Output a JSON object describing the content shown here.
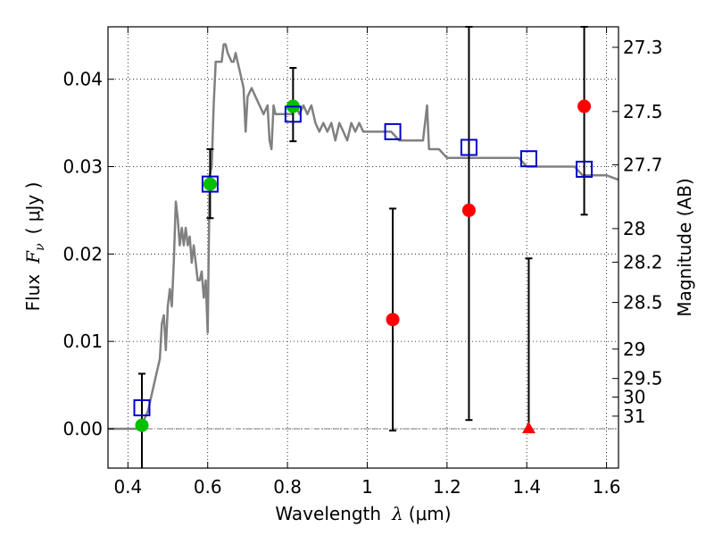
{
  "chart_data": {
    "type": "scatter",
    "xlabel_text": "Wavelength",
    "xlabel_symbol": "λ",
    "xlabel_unit": "(μm)",
    "ylabel_text": "Flux",
    "ylabel_symbol": "F",
    "ylabel_subscript": "ν",
    "ylabel_unit": "( μJy )",
    "ylabel_right": "Magnitude (AB)",
    "xlim": [
      0.35,
      1.63
    ],
    "ylim": [
      -0.0045,
      0.046
    ],
    "grid": true,
    "x_ticks": [
      {
        "value": 0.4,
        "label": "0.4"
      },
      {
        "value": 0.6,
        "label": "0.6"
      },
      {
        "value": 0.8,
        "label": "0.8"
      },
      {
        "value": 1.0,
        "label": "1"
      },
      {
        "value": 1.2,
        "label": "1.2"
      },
      {
        "value": 1.4,
        "label": "1.4"
      },
      {
        "value": 1.6,
        "label": "1.6"
      }
    ],
    "y_ticks": [
      {
        "value": 0.0,
        "label": "0.00"
      },
      {
        "value": 0.01,
        "label": "0.01"
      },
      {
        "value": 0.02,
        "label": "0.02"
      },
      {
        "value": 0.03,
        "label": "0.03"
      },
      {
        "value": 0.04,
        "label": "0.04"
      }
    ],
    "mag_ticks": [
      {
        "mag": 27.3,
        "label": "27.3"
      },
      {
        "mag": 27.5,
        "label": "27.5"
      },
      {
        "mag": 27.7,
        "label": "27.7"
      },
      {
        "mag": 28,
        "label": "28"
      },
      {
        "mag": 28.2,
        "label": "28.2"
      },
      {
        "mag": 28.5,
        "label": "28.5"
      },
      {
        "mag": 29,
        "label": "29"
      },
      {
        "mag": 29.5,
        "label": "29.5"
      },
      {
        "mag": 30,
        "label": "30"
      },
      {
        "mag": 31,
        "label": "31"
      }
    ],
    "zero_line": {
      "y": 0,
      "color": "#777777"
    },
    "model_spectrum": {
      "color": "#808080",
      "points": [
        [
          0.35,
          0.0
        ],
        [
          0.4,
          0.0
        ],
        [
          0.43,
          0.0
        ],
        [
          0.45,
          0.002
        ],
        [
          0.47,
          0.006
        ],
        [
          0.48,
          0.008
        ],
        [
          0.485,
          0.012
        ],
        [
          0.49,
          0.013
        ],
        [
          0.495,
          0.009
        ],
        [
          0.5,
          0.014
        ],
        [
          0.505,
          0.016
        ],
        [
          0.51,
          0.014
        ],
        [
          0.515,
          0.019
        ],
        [
          0.52,
          0.026
        ],
        [
          0.525,
          0.024
        ],
        [
          0.53,
          0.021
        ],
        [
          0.535,
          0.023
        ],
        [
          0.54,
          0.021
        ],
        [
          0.545,
          0.023
        ],
        [
          0.55,
          0.021
        ],
        [
          0.555,
          0.022
        ],
        [
          0.56,
          0.019
        ],
        [
          0.565,
          0.021
        ],
        [
          0.57,
          0.019
        ],
        [
          0.575,
          0.017
        ],
        [
          0.58,
          0.017
        ],
        [
          0.585,
          0.018
        ],
        [
          0.59,
          0.015
        ],
        [
          0.595,
          0.017
        ],
        [
          0.6,
          0.011
        ],
        [
          0.605,
          0.029
        ],
        [
          0.61,
          0.03
        ],
        [
          0.615,
          0.037
        ],
        [
          0.62,
          0.042
        ],
        [
          0.63,
          0.042
        ],
        [
          0.635,
          0.042
        ],
        [
          0.64,
          0.044
        ],
        [
          0.645,
          0.044
        ],
        [
          0.65,
          0.043
        ],
        [
          0.66,
          0.042
        ],
        [
          0.665,
          0.042
        ],
        [
          0.67,
          0.043
        ],
        [
          0.675,
          0.042
        ],
        [
          0.68,
          0.041
        ],
        [
          0.69,
          0.039
        ],
        [
          0.695,
          0.034
        ],
        [
          0.7,
          0.038
        ],
        [
          0.71,
          0.039
        ],
        [
          0.72,
          0.038
        ],
        [
          0.73,
          0.037
        ],
        [
          0.74,
          0.036
        ],
        [
          0.75,
          0.037
        ],
        [
          0.755,
          0.033
        ],
        [
          0.76,
          0.032
        ],
        [
          0.765,
          0.037
        ],
        [
          0.77,
          0.036
        ],
        [
          0.78,
          0.036
        ],
        [
          0.79,
          0.036
        ],
        [
          0.8,
          0.036
        ],
        [
          0.81,
          0.036
        ],
        [
          0.82,
          0.037
        ],
        [
          0.83,
          0.036
        ],
        [
          0.84,
          0.037
        ],
        [
          0.85,
          0.036
        ],
        [
          0.86,
          0.037
        ],
        [
          0.87,
          0.035
        ],
        [
          0.88,
          0.034
        ],
        [
          0.89,
          0.035
        ],
        [
          0.9,
          0.034
        ],
        [
          0.91,
          0.035
        ],
        [
          0.92,
          0.033
        ],
        [
          0.93,
          0.035
        ],
        [
          0.94,
          0.034
        ],
        [
          0.95,
          0.033
        ],
        [
          0.96,
          0.035
        ],
        [
          0.97,
          0.034
        ],
        [
          0.98,
          0.035
        ],
        [
          0.99,
          0.034
        ],
        [
          1.0,
          0.034
        ],
        [
          1.02,
          0.034
        ],
        [
          1.04,
          0.034
        ],
        [
          1.06,
          0.034
        ],
        [
          1.08,
          0.033
        ],
        [
          1.1,
          0.033
        ],
        [
          1.12,
          0.033
        ],
        [
          1.14,
          0.033
        ],
        [
          1.15,
          0.037
        ],
        [
          1.155,
          0.032
        ],
        [
          1.16,
          0.032
        ],
        [
          1.18,
          0.032
        ],
        [
          1.2,
          0.031
        ],
        [
          1.22,
          0.031
        ],
        [
          1.24,
          0.031
        ],
        [
          1.26,
          0.031
        ],
        [
          1.28,
          0.031
        ],
        [
          1.3,
          0.031
        ],
        [
          1.32,
          0.031
        ],
        [
          1.34,
          0.031
        ],
        [
          1.36,
          0.031
        ],
        [
          1.38,
          0.031
        ],
        [
          1.4,
          0.03
        ],
        [
          1.42,
          0.03
        ],
        [
          1.44,
          0.03
        ],
        [
          1.46,
          0.03
        ],
        [
          1.48,
          0.03
        ],
        [
          1.5,
          0.03
        ],
        [
          1.52,
          0.03
        ],
        [
          1.54,
          0.029
        ],
        [
          1.56,
          0.029
        ],
        [
          1.58,
          0.029
        ],
        [
          1.6,
          0.029
        ],
        [
          1.63,
          0.0285
        ]
      ]
    },
    "model_squares": [
      {
        "x": 0.435,
        "y": 0.0024
      },
      {
        "x": 0.606,
        "y": 0.028
      },
      {
        "x": 0.814,
        "y": 0.036
      },
      {
        "x": 1.064,
        "y": 0.034
      },
      {
        "x": 1.255,
        "y": 0.0322
      },
      {
        "x": 1.405,
        "y": 0.0309
      },
      {
        "x": 1.544,
        "y": 0.0297
      }
    ],
    "detections": [
      {
        "x": 0.435,
        "y": 0.0004,
        "err_lo": -0.0048,
        "err_hi": 0.0063,
        "color": "#00c000"
      },
      {
        "x": 0.606,
        "y": 0.028,
        "err_lo": 0.0241,
        "err_hi": 0.032,
        "color": "#00c000"
      },
      {
        "x": 0.814,
        "y": 0.0369,
        "err_lo": 0.0329,
        "err_hi": 0.0413,
        "color": "#00c000"
      }
    ],
    "non_detections": [
      {
        "x": 1.064,
        "y": 0.0125,
        "err_lo": -0.0002,
        "err_hi": 0.0252,
        "color": "#ff0000"
      },
      {
        "x": 1.255,
        "y": 0.025,
        "err_lo": 0.001,
        "err_hi": 0.046,
        "color": "#ff0000"
      },
      {
        "x": 1.544,
        "y": 0.0369,
        "err_lo": 0.0245,
        "err_hi": 0.046,
        "color": "#ff0000"
      }
    ],
    "upper_limit_triangles": [
      {
        "x": 1.405,
        "y": 0.0,
        "err_lo": -0.0004,
        "err_hi": 0.0195,
        "color": "#ff0000"
      }
    ]
  }
}
